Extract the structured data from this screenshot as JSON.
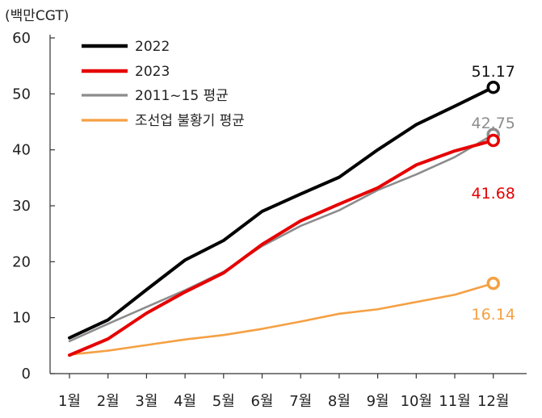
{
  "chart_data": {
    "type": "line",
    "title": "",
    "unit_label": "(백만CGT)",
    "xlabel": "",
    "ylabel": "",
    "ylim": [
      0,
      60
    ],
    "yticks": [
      0,
      10,
      20,
      30,
      40,
      50,
      60
    ],
    "grid": false,
    "legend_position": "top-left",
    "categories": [
      "1월",
      "2월",
      "3월",
      "4월",
      "5월",
      "6월",
      "7월",
      "8월",
      "9월",
      "10월",
      "11월",
      "12월"
    ],
    "series": [
      {
        "name": "2022",
        "color": "#000000",
        "values": [
          6.4,
          9.6,
          15.0,
          20.3,
          23.8,
          29.0,
          32.1,
          35.1,
          40.0,
          44.5,
          47.8,
          51.17
        ],
        "end_label": "51.17",
        "end_label_color": "#111111"
      },
      {
        "name": "2023",
        "color": "#e60000",
        "values": [
          3.3,
          6.2,
          10.8,
          14.6,
          18.0,
          23.1,
          27.3,
          30.3,
          33.2,
          37.3,
          39.8,
          41.68
        ],
        "end_label": "41.68",
        "end_label_color": "#e60000"
      },
      {
        "name": "2011~15 평균",
        "color": "#8c8c8c",
        "values": [
          5.8,
          8.9,
          11.9,
          14.9,
          18.2,
          22.8,
          26.4,
          29.2,
          32.8,
          35.6,
          38.7,
          42.75
        ],
        "end_label": "42.75",
        "end_label_color": "#8c8c8c"
      },
      {
        "name": "조선업 불황기 평균",
        "color": "#f5a043",
        "values": [
          3.4,
          4.1,
          5.1,
          6.1,
          6.9,
          8.0,
          9.3,
          10.7,
          11.5,
          12.8,
          14.1,
          16.14
        ],
        "end_label": "16.14",
        "end_label_color": "#f5a043"
      }
    ]
  }
}
